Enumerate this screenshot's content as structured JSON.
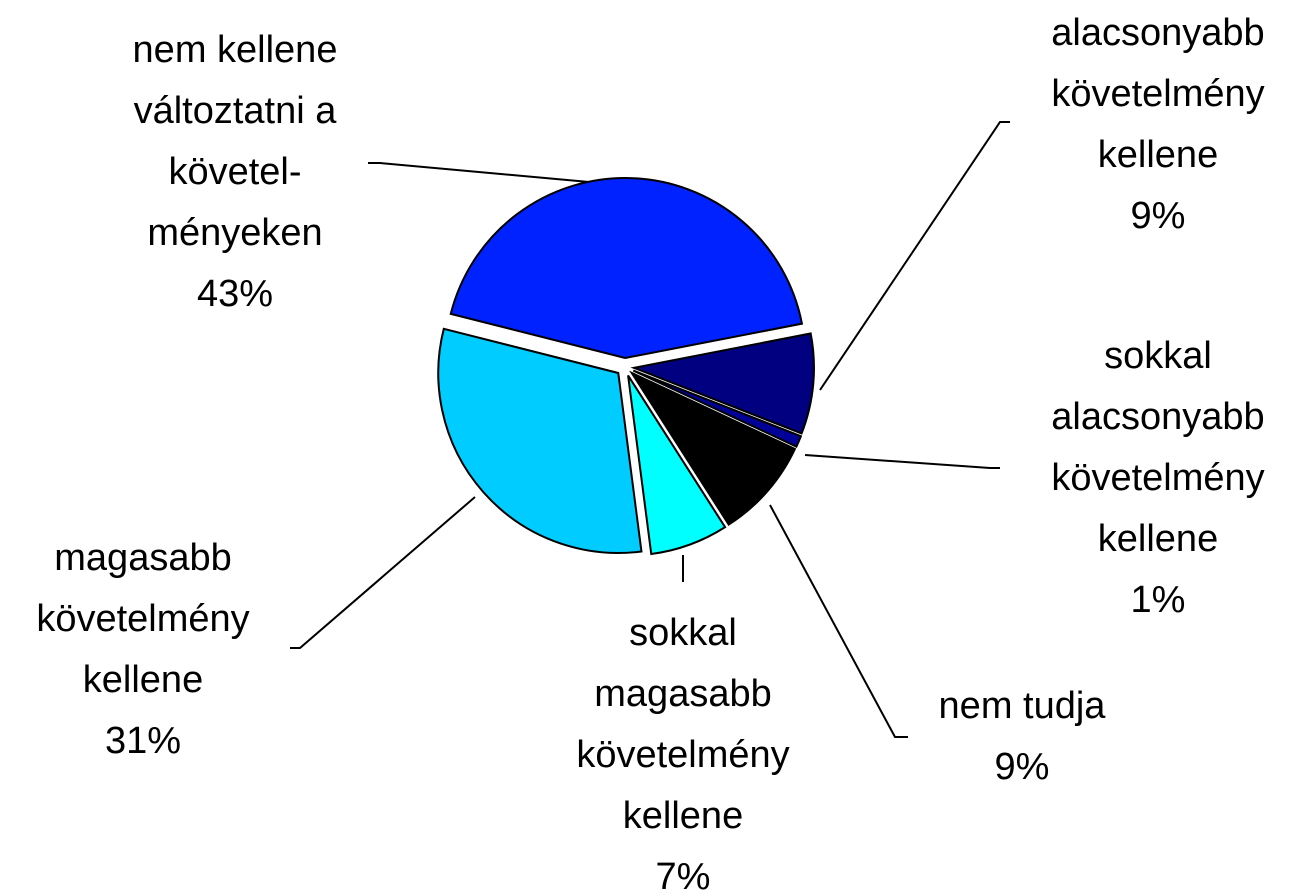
{
  "chart_data": {
    "type": "pie",
    "categories": [
      "alacsonyabb\nkövetelmény\nkellene",
      "sokkal\nalacsonyabb\nkövetelmény\nkellene",
      "nem tudja",
      "sokkal\nmagasabb\nkövetelmény\nkellene",
      "magasabb\nkövetelmény\nkellene",
      "nem kellene\nváltoztatni a\nkövetel-\nményeken"
    ],
    "values": [
      9,
      1,
      9,
      7,
      31,
      43
    ],
    "value_labels": [
      "9%",
      "1%",
      "9%",
      "7%",
      "31%",
      "43%"
    ],
    "colors": [
      "#000080",
      "#000099",
      "#000000",
      "#00ffff",
      "#00ccff",
      "#0022ff"
    ]
  }
}
